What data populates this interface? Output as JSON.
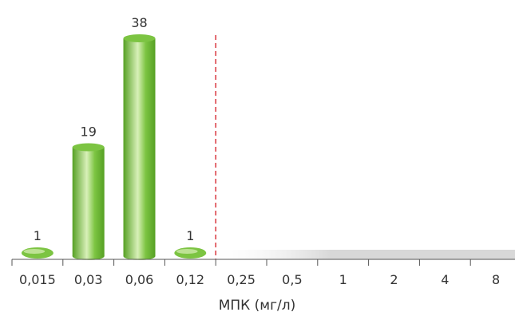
{
  "chart_data": {
    "type": "bar",
    "categories": [
      "0,015",
      "0,03",
      "0,06",
      "0,12",
      "0,25",
      "0,5",
      "1",
      "2",
      "4",
      "8"
    ],
    "values": [
      1,
      19,
      38,
      1,
      0,
      0,
      0,
      0,
      0,
      0
    ],
    "data_labels": [
      "1",
      "19",
      "38",
      "1",
      "",
      "",
      "",
      "",
      "",
      ""
    ],
    "title": "",
    "xlabel": "МПК (мг/л)",
    "ylabel": "",
    "ylim": [
      0,
      40
    ],
    "grid": false,
    "threshold_after_category": "0,12",
    "colors": {
      "bar": "#7cc442",
      "bar_light": "#d8f0b8",
      "bar_dark": "#56a024",
      "threshold": "#d9363e",
      "axis": "#555555",
      "floor": "#d8d8d8"
    }
  }
}
